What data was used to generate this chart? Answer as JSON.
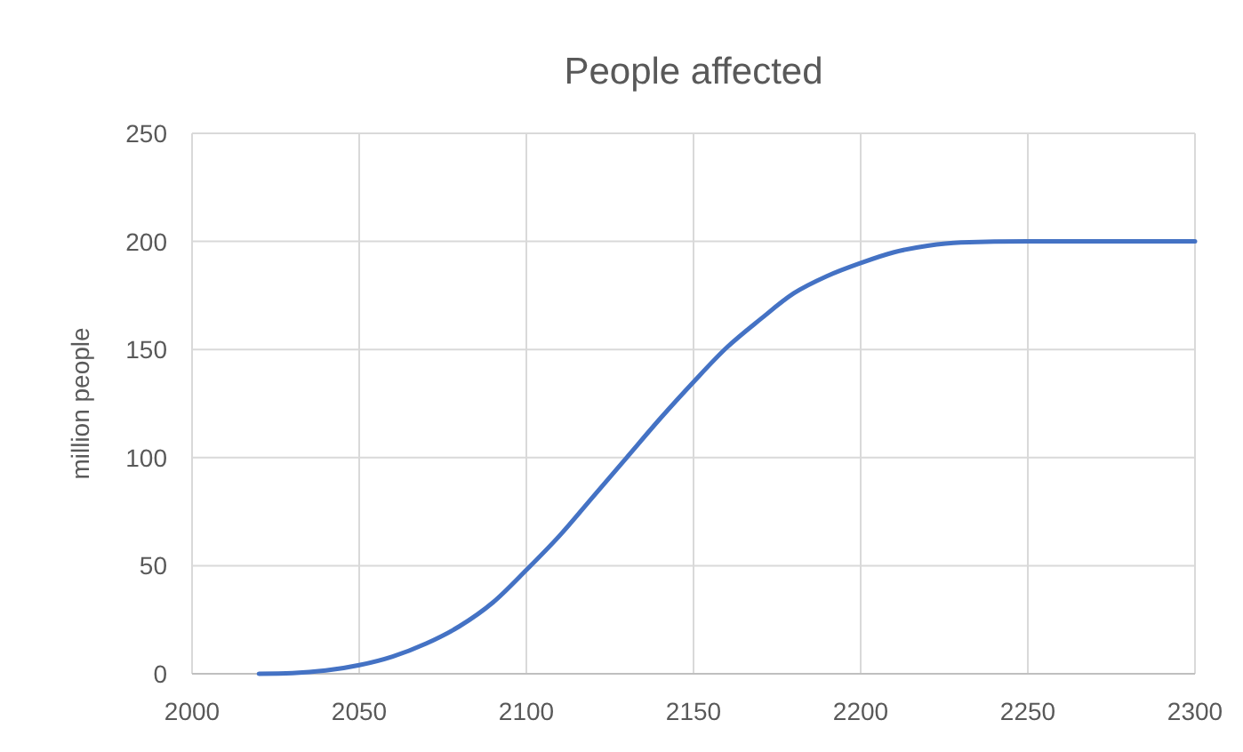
{
  "chart_data": {
    "type": "line",
    "title": "People affected",
    "ylabel": "million people",
    "x": [
      2020,
      2030,
      2040,
      2050,
      2060,
      2070,
      2080,
      2090,
      2100,
      2110,
      2120,
      2130,
      2140,
      2150,
      2160,
      2170,
      2180,
      2190,
      2200,
      2210,
      2220,
      2230,
      2250,
      2300
    ],
    "series": [
      {
        "color": "#4472c4",
        "values": [
          0,
          0.3,
          1.5,
          4,
          8,
          14,
          22,
          33,
          48,
          64,
          82,
          100,
          118,
          135,
          151,
          164,
          176,
          184,
          190,
          195,
          198,
          199.5,
          200,
          200
        ]
      }
    ],
    "xlim": [
      2000,
      2300
    ],
    "xticks": [
      2000,
      2050,
      2100,
      2150,
      2200,
      2250,
      2300
    ],
    "ylim": [
      0,
      250
    ],
    "yticks": [
      0,
      50,
      100,
      150,
      200,
      250
    ],
    "grid": true,
    "marker": "none",
    "line_style": "solid"
  }
}
